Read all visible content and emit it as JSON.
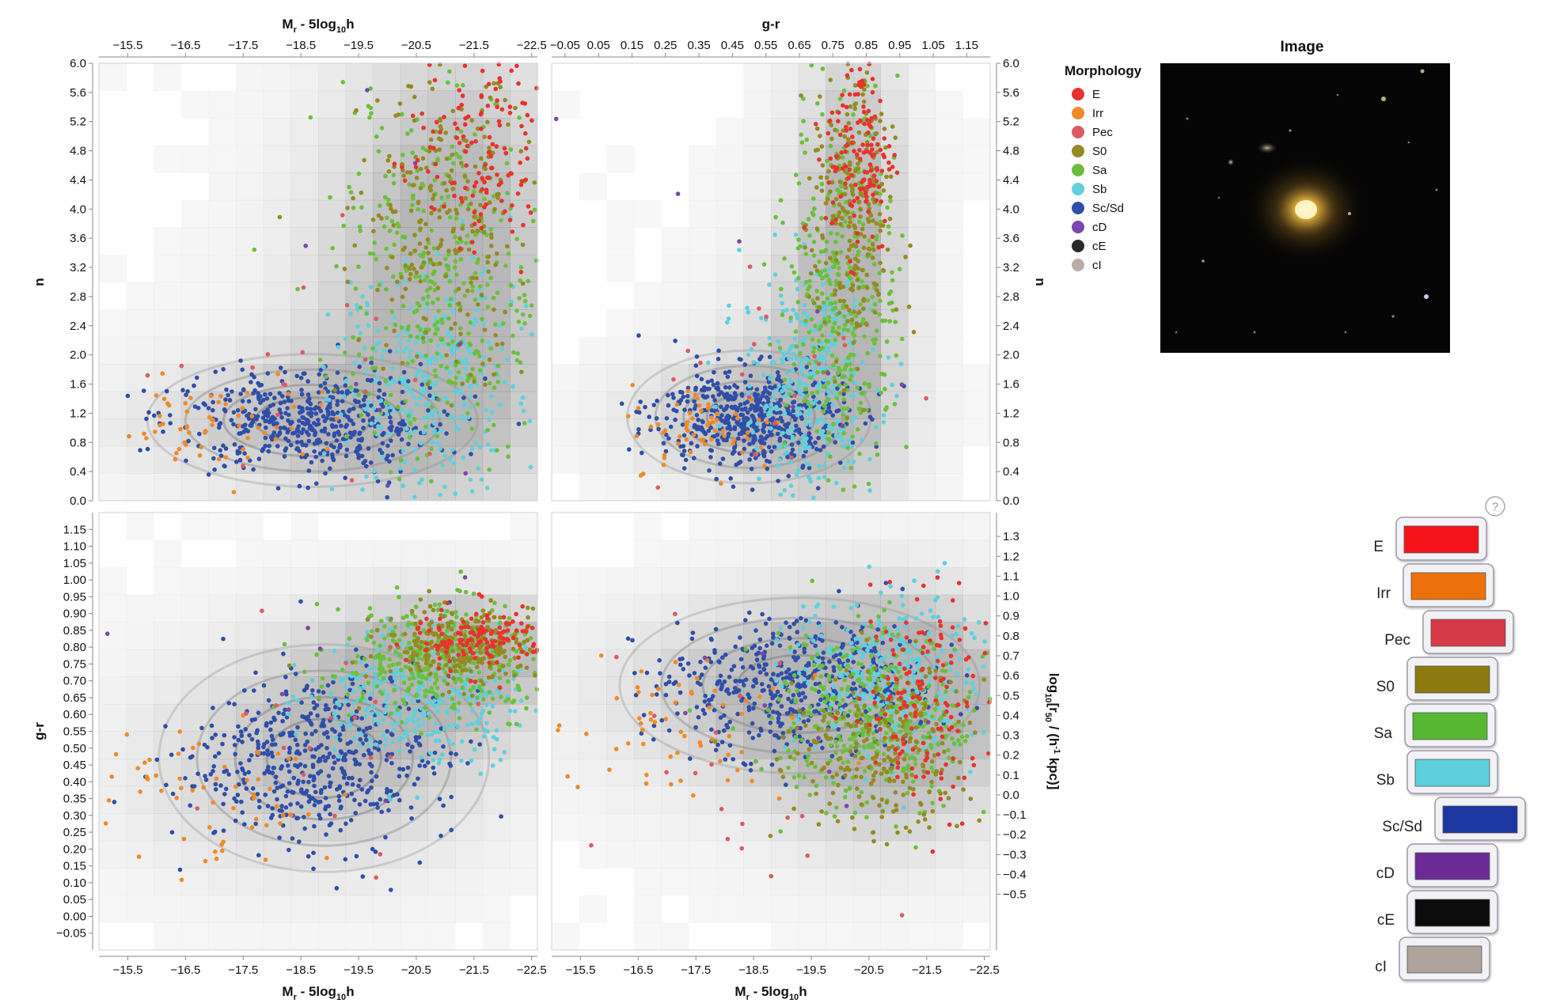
{
  "chart_data": [
    {
      "id": "top-left",
      "type": "scatter",
      "xlabel_main": "M",
      "xlabel_sub": "r",
      "xlabel_rest": " - 5log",
      "xlabel_sub2": "10",
      "xlabel_end": "h",
      "xlabel_position": "top",
      "ylabel": "n",
      "xlim": [
        -15,
        -22.6
      ],
      "ylim": [
        0,
        6
      ],
      "xticks": [
        "−15.5",
        "−16.5",
        "−17.5",
        "−18.5",
        "−19.5",
        "−20.5",
        "−21.5",
        "−22.5"
      ],
      "xtick_values": [
        -15.5,
        -16.5,
        -17.5,
        -18.5,
        -19.5,
        -20.5,
        -21.5,
        -22.5
      ],
      "yticks": [
        "0.0",
        "0.4",
        "0.8",
        "1.2",
        "1.6",
        "2.0",
        "2.4",
        "2.8",
        "3.2",
        "3.6",
        "4.0",
        "4.4",
        "4.8",
        "5.2",
        "5.6",
        "6.0"
      ],
      "ytick_values": [
        0,
        0.4,
        0.8,
        1.2,
        1.6,
        2.0,
        2.4,
        2.8,
        3.2,
        3.6,
        4.0,
        4.4,
        4.8,
        5.2,
        5.6,
        6.0
      ],
      "series": [
        {
          "name": "Sc/Sd",
          "center": [
            -18.7,
            1.1
          ],
          "spread": [
            1.1,
            0.35
          ],
          "count": 520
        },
        {
          "name": "Sb",
          "center": [
            -20.8,
            1.6
          ],
          "spread": [
            0.9,
            0.8
          ],
          "count": 320
        },
        {
          "name": "Sa",
          "center": [
            -20.9,
            3.0
          ],
          "spread": [
            0.9,
            1.3
          ],
          "count": 380
        },
        {
          "name": "S0",
          "center": [
            -21.0,
            3.8
          ],
          "spread": [
            0.8,
            1.1
          ],
          "count": 260
        },
        {
          "name": "E",
          "center": [
            -21.6,
            4.8
          ],
          "spread": [
            0.6,
            0.7
          ],
          "count": 140
        },
        {
          "name": "Irr",
          "center": [
            -17.0,
            1.0
          ],
          "spread": [
            1.0,
            0.3
          ],
          "count": 60
        },
        {
          "name": "Pec",
          "center": [
            -18.5,
            1.6
          ],
          "spread": [
            1.5,
            0.9
          ],
          "count": 20
        },
        {
          "name": "cD",
          "center": [
            -19.5,
            2.5
          ],
          "spread": [
            2.0,
            1.3
          ],
          "count": 8
        }
      ]
    },
    {
      "id": "top-right",
      "type": "scatter",
      "xlabel": "g-r",
      "xlabel_position": "top",
      "ylabel": "n",
      "ylabel_position": "right",
      "xlim": [
        -0.09,
        1.22
      ],
      "ylim": [
        0,
        6
      ],
      "xticks": [
        "−0.05",
        "0.05",
        "0.15",
        "0.25",
        "0.35",
        "0.45",
        "0.55",
        "0.65",
        "0.75",
        "0.85",
        "0.95",
        "1.05",
        "1.15"
      ],
      "xtick_values": [
        -0.05,
        0.05,
        0.15,
        0.25,
        0.35,
        0.45,
        0.55,
        0.65,
        0.75,
        0.85,
        0.95,
        1.05,
        1.15
      ],
      "yticks": [
        "0.0",
        "0.4",
        "0.8",
        "1.2",
        "1.6",
        "2.0",
        "2.4",
        "2.8",
        "3.2",
        "3.6",
        "4.0",
        "4.4",
        "4.8",
        "5.2",
        "5.6",
        "6.0"
      ],
      "ytick_values": [
        0,
        0.4,
        0.8,
        1.2,
        1.6,
        2.0,
        2.4,
        2.8,
        3.2,
        3.6,
        4.0,
        4.4,
        4.8,
        5.2,
        5.6,
        6.0
      ],
      "series": [
        {
          "name": "Sc/Sd",
          "center": [
            0.5,
            1.15
          ],
          "spread": [
            0.14,
            0.35
          ],
          "count": 520
        },
        {
          "name": "Sb",
          "center": [
            0.68,
            1.6
          ],
          "spread": [
            0.1,
            0.8
          ],
          "count": 320
        },
        {
          "name": "Sa",
          "center": [
            0.78,
            3.0
          ],
          "spread": [
            0.08,
            1.3
          ],
          "count": 380
        },
        {
          "name": "S0",
          "center": [
            0.81,
            3.8
          ],
          "spread": [
            0.06,
            1.1
          ],
          "count": 260
        },
        {
          "name": "E",
          "center": [
            0.83,
            4.8
          ],
          "spread": [
            0.05,
            0.7
          ],
          "count": 140
        },
        {
          "name": "Irr",
          "center": [
            0.38,
            1.0
          ],
          "spread": [
            0.12,
            0.3
          ],
          "count": 60
        },
        {
          "name": "Pec",
          "center": [
            0.6,
            1.6
          ],
          "spread": [
            0.2,
            0.9
          ],
          "count": 20
        },
        {
          "name": "cD",
          "center": [
            0.6,
            2.5
          ],
          "spread": [
            0.2,
            1.3
          ],
          "count": 8
        }
      ]
    },
    {
      "id": "bottom-left",
      "type": "scatter",
      "xlabel_main": "M",
      "xlabel_sub": "r",
      "xlabel_rest": " - 5log",
      "xlabel_sub2": "10",
      "xlabel_end": "h",
      "xlabel_position": "bottom",
      "ylabel": "g-r",
      "xlim": [
        -15,
        -22.6
      ],
      "ylim": [
        -0.1,
        1.2
      ],
      "xticks": [
        "−15.5",
        "−16.5",
        "−17.5",
        "−18.5",
        "−19.5",
        "−20.5",
        "−21.5",
        "−22.5"
      ],
      "xtick_values": [
        -15.5,
        -16.5,
        -17.5,
        -18.5,
        -19.5,
        -20.5,
        -21.5,
        -22.5
      ],
      "yticks": [
        "−0.05",
        "0.00",
        "0.05",
        "0.10",
        "0.15",
        "0.20",
        "0.25",
        "0.30",
        "0.35",
        "0.40",
        "0.45",
        "0.50",
        "0.55",
        "0.60",
        "0.65",
        "0.70",
        "0.75",
        "0.80",
        "0.85",
        "0.90",
        "0.95",
        "1.00",
        "1.05",
        "1.10",
        "1.15"
      ],
      "ytick_values": [
        -0.05,
        0,
        0.05,
        0.1,
        0.15,
        0.2,
        0.25,
        0.3,
        0.35,
        0.4,
        0.45,
        0.5,
        0.55,
        0.6,
        0.65,
        0.7,
        0.75,
        0.8,
        0.85,
        0.9,
        0.95,
        1.0,
        1.05,
        1.1,
        1.15
      ],
      "series": [
        {
          "name": "Sc/Sd",
          "center": [
            -18.9,
            0.47
          ],
          "spread": [
            1.1,
            0.13
          ],
          "count": 520
        },
        {
          "name": "Sb",
          "center": [
            -20.6,
            0.66
          ],
          "spread": [
            0.9,
            0.1
          ],
          "count": 320
        },
        {
          "name": "Sa",
          "center": [
            -20.9,
            0.76
          ],
          "spread": [
            0.9,
            0.08
          ],
          "count": 380
        },
        {
          "name": "S0",
          "center": [
            -21.3,
            0.8
          ],
          "spread": [
            0.7,
            0.06
          ],
          "count": 260
        },
        {
          "name": "E",
          "center": [
            -21.7,
            0.82
          ],
          "spread": [
            0.6,
            0.05
          ],
          "count": 140
        },
        {
          "name": "Irr",
          "center": [
            -17.0,
            0.35
          ],
          "spread": [
            1.0,
            0.1
          ],
          "count": 60
        },
        {
          "name": "Pec",
          "center": [
            -18.5,
            0.55
          ],
          "spread": [
            1.5,
            0.2
          ],
          "count": 20
        },
        {
          "name": "cD",
          "center": [
            -19.5,
            0.6
          ],
          "spread": [
            2.0,
            0.2
          ],
          "count": 8
        }
      ]
    },
    {
      "id": "bottom-right",
      "type": "scatter",
      "xlabel_main": "M",
      "xlabel_sub": "r",
      "xlabel_rest": " - 5log",
      "xlabel_sub2": "10",
      "xlabel_end": "h",
      "xlabel_position": "bottom",
      "ylabel_parts": [
        "log",
        "10",
        "[r",
        "50",
        " / (h",
        "-1",
        " kpc)]"
      ],
      "ylabel_position": "right",
      "xlim": [
        -15,
        -22.6
      ],
      "ylim": [
        -0.78,
        1.42
      ],
      "xticks": [
        "−15.5",
        "−16.5",
        "−17.5",
        "−18.5",
        "−19.5",
        "−20.5",
        "−21.5",
        "−22.5"
      ],
      "xtick_values": [
        -15.5,
        -16.5,
        -17.5,
        -18.5,
        -19.5,
        -20.5,
        -21.5,
        -22.5
      ],
      "yticks": [
        "−0.5",
        "−0.4",
        "−0.3",
        "−0.2",
        "−0.1",
        "0.0",
        "0.1",
        "0.2",
        "0.3",
        "0.4",
        "0.5",
        "0.6",
        "0.7",
        "0.8",
        "0.9",
        "1.0",
        "1.1",
        "1.2",
        "1.3"
      ],
      "ytick_values": [
        -0.5,
        -0.4,
        -0.3,
        -0.2,
        -0.1,
        0,
        0.1,
        0.2,
        0.3,
        0.4,
        0.5,
        0.6,
        0.7,
        0.8,
        0.9,
        1.0,
        1.1,
        1.2,
        1.3
      ],
      "series": [
        {
          "name": "Sc/Sd",
          "center": [
            -19.3,
            0.55
          ],
          "spread": [
            1.2,
            0.17
          ],
          "count": 520
        },
        {
          "name": "Sb",
          "center": [
            -20.8,
            0.6
          ],
          "spread": [
            0.9,
            0.2
          ],
          "count": 320
        },
        {
          "name": "Sa",
          "center": [
            -20.6,
            0.35
          ],
          "spread": [
            0.9,
            0.22
          ],
          "count": 380
        },
        {
          "name": "S0",
          "center": [
            -20.7,
            0.25
          ],
          "spread": [
            0.8,
            0.22
          ],
          "count": 260
        },
        {
          "name": "E",
          "center": [
            -21.4,
            0.45
          ],
          "spread": [
            0.6,
            0.25
          ],
          "count": 140
        },
        {
          "name": "Irr",
          "center": [
            -17.2,
            0.35
          ],
          "spread": [
            1.0,
            0.2
          ],
          "count": 60
        },
        {
          "name": "Pec",
          "center": [
            -19.0,
            0.1
          ],
          "spread": [
            1.5,
            0.35
          ],
          "count": 20
        },
        {
          "name": "cD",
          "center": [
            -19.5,
            0.3
          ],
          "spread": [
            2.0,
            0.3
          ],
          "count": 8
        }
      ]
    }
  ],
  "legend": {
    "title": "Morphology",
    "items": [
      {
        "label": "E",
        "color": "#e8322e"
      },
      {
        "label": "Irr",
        "color": "#ef8a2a"
      },
      {
        "label": "Pec",
        "color": "#dc5a64"
      },
      {
        "label": "S0",
        "color": "#948a22"
      },
      {
        "label": "Sa",
        "color": "#6cbf3e"
      },
      {
        "label": "Sb",
        "color": "#5fd0dc"
      },
      {
        "label": "Sc/Sd",
        "color": "#2f4ea8"
      },
      {
        "label": "cD",
        "color": "#7a48a8"
      },
      {
        "label": "cE",
        "color": "#2a2a2a"
      },
      {
        "label": "cI",
        "color": "#b8aca8"
      }
    ]
  },
  "image_panel": {
    "title": "Image"
  },
  "color_selector": {
    "help": "?",
    "items": [
      {
        "label": "E",
        "color": "#f5141a"
      },
      {
        "label": "Irr",
        "color": "#ec700c"
      },
      {
        "label": "Pec",
        "color": "#d63a46"
      },
      {
        "label": "S0",
        "color": "#8c7a10"
      },
      {
        "label": "Sa",
        "color": "#56b832"
      },
      {
        "label": "Sb",
        "color": "#5ecfdc"
      },
      {
        "label": "Sc/Sd",
        "color": "#1c38a0"
      },
      {
        "label": "cD",
        "color": "#6a2c94"
      },
      {
        "label": "cE",
        "color": "#0c0c0c"
      },
      {
        "label": "cI",
        "color": "#aea49c"
      }
    ]
  }
}
